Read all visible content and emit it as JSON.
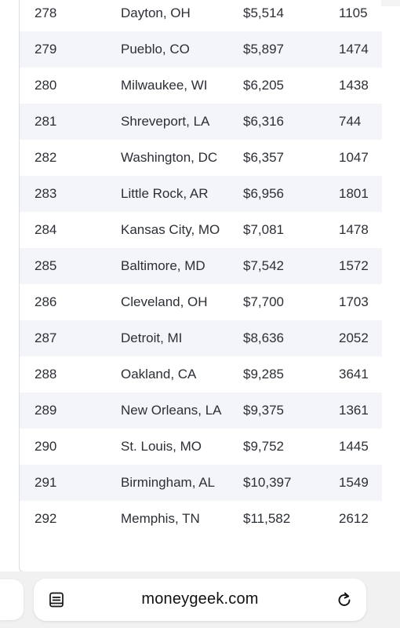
{
  "table": {
    "rows": [
      {
        "rank": "278",
        "city": "Dayton, OH",
        "cost": "$5,514",
        "value": "1105"
      },
      {
        "rank": "279",
        "city": "Pueblo, CO",
        "cost": "$5,897",
        "value": "1474"
      },
      {
        "rank": "280",
        "city": "Milwaukee, WI",
        "cost": "$6,205",
        "value": "1438"
      },
      {
        "rank": "281",
        "city": "Shreveport, LA",
        "cost": "$6,316",
        "value": "744"
      },
      {
        "rank": "282",
        "city": "Washington, DC",
        "cost": "$6,357",
        "value": "1047"
      },
      {
        "rank": "283",
        "city": "Little Rock, AR",
        "cost": "$6,956",
        "value": "1801"
      },
      {
        "rank": "284",
        "city": "Kansas City, MO",
        "cost": "$7,081",
        "value": "1478"
      },
      {
        "rank": "285",
        "city": "Baltimore, MD",
        "cost": "$7,542",
        "value": "1572"
      },
      {
        "rank": "286",
        "city": "Cleveland, OH",
        "cost": "$7,700",
        "value": "1703"
      },
      {
        "rank": "287",
        "city": "Detroit, MI",
        "cost": "$8,636",
        "value": "2052"
      },
      {
        "rank": "288",
        "city": "Oakland, CA",
        "cost": "$9,285",
        "value": "3641"
      },
      {
        "rank": "289",
        "city": "New Orleans, LA",
        "cost": "$9,375",
        "value": "1361"
      },
      {
        "rank": "290",
        "city": "St. Louis, MO",
        "cost": "$9,752",
        "value": "1445"
      },
      {
        "rank": "291",
        "city": "Birmingham, AL",
        "cost": "$10,397",
        "value": "1549"
      },
      {
        "rank": "292",
        "city": "Memphis, TN",
        "cost": "$11,582",
        "value": "2612"
      }
    ]
  },
  "browser": {
    "url": "moneygeek.com",
    "reader_icon": "reader-mode-icon",
    "reload_icon": "reload-icon"
  },
  "colors": {
    "stripe": "#f4f5f9",
    "text": "#2b2f36",
    "chrome": "#f1f1f2"
  }
}
